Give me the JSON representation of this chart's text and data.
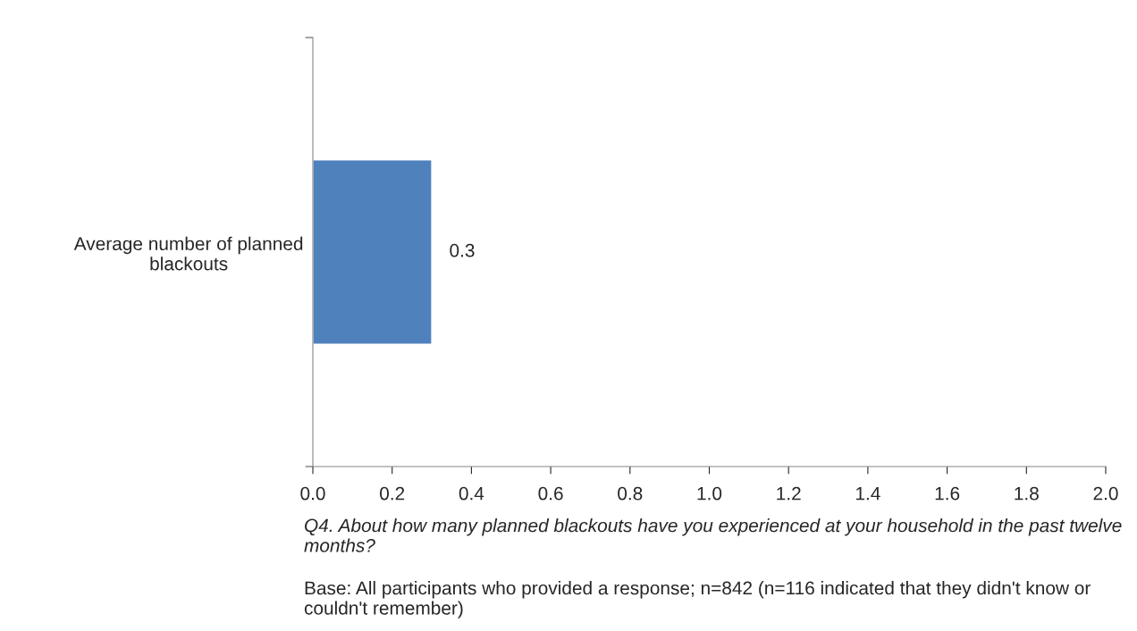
{
  "chart_data": {
    "type": "bar",
    "orientation": "horizontal",
    "categories": [
      "Average number of planned blackouts"
    ],
    "values": [
      0.3
    ],
    "color": "#4f81bd",
    "data_labels": true,
    "xlim": [
      0,
      2
    ],
    "xticks": [
      {
        "value": 0,
        "label": "0.0"
      },
      {
        "value": 0.2,
        "label": "0.2"
      },
      {
        "value": 0.4,
        "label": "0.4"
      },
      {
        "value": 0.6,
        "label": "0.6"
      },
      {
        "value": 0.8,
        "label": "0.8"
      },
      {
        "value": 1,
        "label": "1.0"
      },
      {
        "value": 1.2,
        "label": "1.2"
      },
      {
        "value": 1.4,
        "label": "1.4"
      },
      {
        "value": 1.6,
        "label": "1.6"
      },
      {
        "value": 1.8,
        "label": "1.8"
      },
      {
        "value": 2,
        "label": "2.0"
      }
    ],
    "grid": false,
    "annotations": [
      "Q4. About how many planned blackouts have you experienced at your household in the past twelve months?",
      "Base: All participants who provided a response; n=842 (n=116 indicated that they didn't know or couldn't remember)"
    ]
  }
}
